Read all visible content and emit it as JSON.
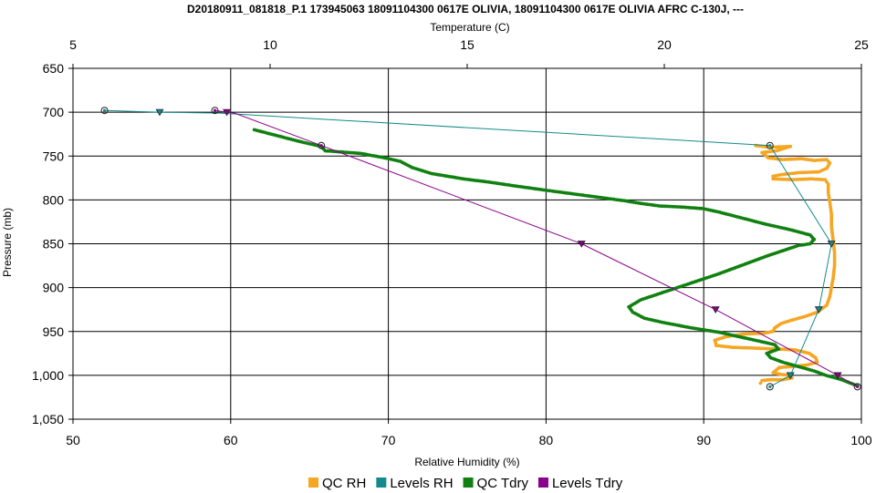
{
  "chart_data": {
    "type": "line",
    "title": "D20180911_081818_P.1 173945063 18091104300 0617E OLIVIA, 18091104300 0617E OLIVIA AFRC C-130J, ---",
    "top_axis": {
      "label": "Temperature (C)",
      "range": [
        5,
        25
      ],
      "ticks": [
        "5",
        "10",
        "15",
        "20",
        "25"
      ]
    },
    "bottom_axis": {
      "label": "Relative Humidity (%)",
      "range": [
        50,
        100
      ],
      "ticks": [
        "50",
        "60",
        "70",
        "80",
        "90",
        "100"
      ]
    },
    "left_axis": {
      "label": "Pressure (mb)",
      "range": [
        650,
        1050
      ],
      "inverted": true,
      "ticks": [
        "650",
        "700",
        "750",
        "800",
        "850",
        "900",
        "950",
        "1,000",
        "1,050"
      ]
    },
    "grid": true,
    "legend_position": "bottom-center",
    "series": [
      {
        "name": "QC RH",
        "axis": "rh",
        "color": "#f5a623",
        "style": "dense-points",
        "points": [
          [
            93.3,
            738
          ],
          [
            94.2,
            740
          ],
          [
            95.5,
            739
          ],
          [
            94.6,
            744
          ],
          [
            93.7,
            746
          ],
          [
            94.1,
            752
          ],
          [
            95.0,
            754
          ],
          [
            96.2,
            753
          ],
          [
            97.0,
            755
          ],
          [
            97.8,
            754
          ],
          [
            98.0,
            758
          ],
          [
            97.8,
            764
          ],
          [
            97.3,
            768
          ],
          [
            96.0,
            769
          ],
          [
            95.0,
            771
          ],
          [
            94.4,
            773
          ],
          [
            94.4,
            776
          ],
          [
            95.6,
            777
          ],
          [
            96.8,
            776
          ],
          [
            97.7,
            777
          ],
          [
            97.9,
            782
          ],
          [
            97.9,
            792
          ],
          [
            98.0,
            803
          ],
          [
            98.1,
            816
          ],
          [
            98.1,
            830
          ],
          [
            98.2,
            845
          ],
          [
            98.3,
            860
          ],
          [
            98.3,
            875
          ],
          [
            98.2,
            890
          ],
          [
            98.1,
            900
          ],
          [
            98.0,
            910
          ],
          [
            97.8,
            920
          ],
          [
            97.2,
            928
          ],
          [
            96.4,
            933
          ],
          [
            95.6,
            937
          ],
          [
            94.9,
            941
          ],
          [
            94.5,
            946
          ],
          [
            94.4,
            950
          ],
          [
            93.8,
            952
          ],
          [
            92.5,
            953
          ],
          [
            91.4,
            956
          ],
          [
            90.7,
            960
          ],
          [
            90.8,
            966
          ],
          [
            91.8,
            968
          ],
          [
            93.2,
            969
          ],
          [
            94.6,
            970
          ],
          [
            95.8,
            971
          ],
          [
            96.7,
            975
          ],
          [
            97.1,
            980
          ],
          [
            97.2,
            985
          ],
          [
            96.6,
            988
          ],
          [
            95.6,
            990
          ],
          [
            94.8,
            991
          ],
          [
            94.6,
            994
          ],
          [
            94.4,
            997
          ],
          [
            94.9,
            999
          ],
          [
            95.5,
            1000
          ],
          [
            95.6,
            1003
          ],
          [
            95.0,
            1005
          ],
          [
            94.2,
            1005
          ],
          [
            93.7,
            1006
          ],
          [
            93.6,
            1009
          ]
        ]
      },
      {
        "name": "Levels RH",
        "axis": "rh",
        "color": "#138b8b",
        "style": "line",
        "points": [
          [
            52.0,
            698
          ],
          [
            55.5,
            700
          ],
          [
            59.3,
            701
          ],
          [
            94.2,
            738
          ],
          [
            98.1,
            850
          ],
          [
            97.3,
            925
          ],
          [
            95.5,
            1000
          ],
          [
            94.2,
            1013
          ]
        ],
        "markers": [
          [
            52.0,
            698,
            "circle"
          ],
          [
            55.5,
            700,
            "triangle"
          ],
          [
            94.2,
            738,
            "circle"
          ],
          [
            98.1,
            850,
            "triangle"
          ],
          [
            97.3,
            925,
            "triangle"
          ],
          [
            95.5,
            1000,
            "triangle"
          ],
          [
            94.2,
            1013,
            "circle"
          ]
        ]
      },
      {
        "name": "QC Tdry",
        "axis": "temp",
        "color": "#108010",
        "style": "dense-points",
        "points": [
          [
            9.6,
            720
          ],
          [
            10.2,
            727
          ],
          [
            10.8,
            734
          ],
          [
            11.3,
            739
          ],
          [
            11.4,
            744
          ],
          [
            12.3,
            747
          ],
          [
            12.9,
            752
          ],
          [
            13.3,
            756
          ],
          [
            13.6,
            763
          ],
          [
            14.1,
            770
          ],
          [
            14.9,
            776
          ],
          [
            15.6,
            780
          ],
          [
            16.2,
            784
          ],
          [
            17.0,
            789
          ],
          [
            18.0,
            795
          ],
          [
            19.0,
            801
          ],
          [
            19.4,
            804
          ],
          [
            19.9,
            807
          ],
          [
            20.4,
            808
          ],
          [
            21.0,
            810
          ],
          [
            21.4,
            814
          ],
          [
            22.0,
            821
          ],
          [
            22.6,
            828
          ],
          [
            23.2,
            834
          ],
          [
            23.7,
            840
          ],
          [
            23.8,
            845
          ],
          [
            23.7,
            850
          ],
          [
            23.4,
            852
          ],
          [
            23.0,
            858
          ],
          [
            22.6,
            864
          ],
          [
            22.0,
            874
          ],
          [
            21.4,
            884
          ],
          [
            20.6,
            896
          ],
          [
            20.0,
            905
          ],
          [
            19.4,
            914
          ],
          [
            19.1,
            922
          ],
          [
            19.2,
            928
          ],
          [
            19.5,
            935
          ],
          [
            20.0,
            940
          ],
          [
            20.7,
            946
          ],
          [
            21.4,
            951
          ],
          [
            21.8,
            955
          ],
          [
            22.3,
            960
          ],
          [
            22.8,
            965
          ],
          [
            22.9,
            970
          ],
          [
            22.6,
            975
          ],
          [
            22.7,
            980
          ],
          [
            23.0,
            985
          ],
          [
            23.4,
            990
          ],
          [
            23.8,
            995
          ],
          [
            24.1,
            1000
          ],
          [
            24.5,
            1005
          ],
          [
            24.9,
            1012
          ]
        ]
      },
      {
        "name": "Levels Tdry",
        "axis": "temp",
        "color": "#8b008b",
        "style": "line",
        "points": [
          [
            8.6,
            698
          ],
          [
            8.9,
            700
          ],
          [
            9.1,
            701
          ],
          [
            11.3,
            738
          ],
          [
            17.9,
            850
          ],
          [
            21.3,
            925
          ],
          [
            24.4,
            1000
          ],
          [
            24.9,
            1013
          ]
        ],
        "markers": [
          [
            8.6,
            698,
            "circle"
          ],
          [
            8.9,
            700,
            "triangle"
          ],
          [
            11.3,
            738,
            "circle"
          ],
          [
            17.9,
            850,
            "triangle"
          ],
          [
            21.3,
            925,
            "triangle"
          ],
          [
            24.4,
            1000,
            "triangle"
          ],
          [
            24.9,
            1013,
            "circle"
          ]
        ]
      }
    ]
  },
  "legend": {
    "items": [
      {
        "label": "QC RH",
        "color": "#f5a623"
      },
      {
        "label": "Levels RH",
        "color": "#138b8b"
      },
      {
        "label": "QC Tdry",
        "color": "#108010"
      },
      {
        "label": "Levels Tdry",
        "color": "#8b008b"
      }
    ]
  }
}
